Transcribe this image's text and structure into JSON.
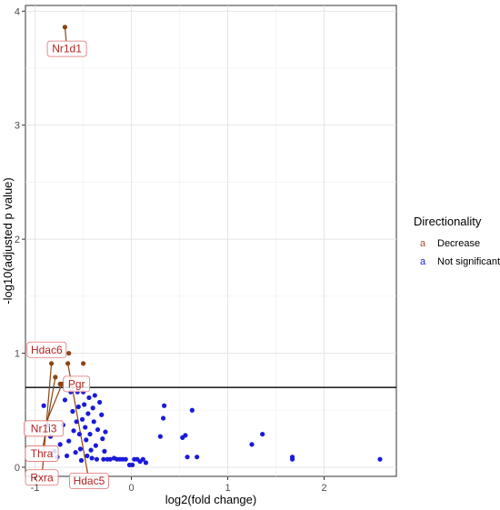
{
  "chart_data": {
    "type": "scatter",
    "xlabel": "log2(fold change)",
    "ylabel": "-log10(adjusted p value)",
    "xlim": [
      -1.1,
      2.75
    ],
    "ylim": [
      -0.08,
      4.05
    ],
    "x_ticks": [
      -1,
      0,
      1,
      2
    ],
    "y_ticks": [
      0,
      1,
      2,
      3,
      4
    ],
    "x_tick_labels": [
      "-1",
      "0",
      "1",
      "2"
    ],
    "y_tick_labels": [
      "0",
      "1",
      "2",
      "3",
      "4"
    ],
    "grid": true,
    "threshold_y": 0.7,
    "legend": {
      "title": "Directionality",
      "position": "right",
      "key_glyph": "a",
      "entries": [
        {
          "label": "Decrease",
          "color": "#a0522d"
        },
        {
          "label": "Not significant",
          "color": "#1a1adb"
        }
      ]
    },
    "series": [
      {
        "name": "Decrease",
        "color": "#8b4513",
        "points": [
          {
            "x": -0.69,
            "y": 3.86,
            "label": "Nr1d1",
            "label_x": -0.67,
            "label_y": 3.67
          },
          {
            "x": -0.65,
            "y": 1.0,
            "label": "Hdac6",
            "label_x": -0.88,
            "label_y": 1.03
          },
          {
            "x": -0.5,
            "y": 0.91,
            "label": "",
            "label_x": null,
            "label_y": null
          },
          {
            "x": -0.66,
            "y": 0.91,
            "label": "Hdac5",
            "label_x": -0.44,
            "label_y": -0.12
          },
          {
            "x": -0.83,
            "y": 0.91,
            "label": "Rxra",
            "label_x": -0.93,
            "label_y": -0.09
          },
          {
            "x": -0.74,
            "y": 0.73,
            "label": "Pgr",
            "label_x": -0.57,
            "label_y": 0.73
          },
          {
            "x": -0.72,
            "y": 0.73,
            "label": "Nr1i3",
            "label_x": -0.91,
            "label_y": 0.34
          },
          {
            "x": -0.79,
            "y": 0.79,
            "label": "Thra",
            "label_x": -0.93,
            "label_y": 0.12
          }
        ]
      },
      {
        "name": "Not significant",
        "color": "#1a1adb",
        "points": [
          {
            "x": -0.91,
            "y": 0.54
          },
          {
            "x": -0.87,
            "y": 0.37
          },
          {
            "x": -0.84,
            "y": 0.27
          },
          {
            "x": -0.8,
            "y": 0.14
          },
          {
            "x": -0.77,
            "y": 0.09
          },
          {
            "x": -0.74,
            "y": 0.2
          },
          {
            "x": -0.71,
            "y": 0.37
          },
          {
            "x": -0.69,
            "y": 0.59
          },
          {
            "x": -0.67,
            "y": 0.1
          },
          {
            "x": -0.65,
            "y": 0.23
          },
          {
            "x": -0.63,
            "y": 0.66
          },
          {
            "x": -0.61,
            "y": 0.49
          },
          {
            "x": -0.6,
            "y": 0.32
          },
          {
            "x": -0.58,
            "y": 0.13
          },
          {
            "x": -0.57,
            "y": 0.4
          },
          {
            "x": -0.56,
            "y": 0.66
          },
          {
            "x": -0.55,
            "y": 0.53
          },
          {
            "x": -0.54,
            "y": 0.29
          },
          {
            "x": -0.53,
            "y": 0.16
          },
          {
            "x": -0.52,
            "y": 0.06
          },
          {
            "x": -0.51,
            "y": 0.42
          },
          {
            "x": -0.5,
            "y": 0.66
          },
          {
            "x": -0.49,
            "y": 0.55
          },
          {
            "x": -0.48,
            "y": 0.35
          },
          {
            "x": -0.47,
            "y": 0.24
          },
          {
            "x": -0.46,
            "y": 0.1
          },
          {
            "x": -0.45,
            "y": 0.47
          },
          {
            "x": -0.44,
            "y": 0.61
          },
          {
            "x": -0.43,
            "y": 0.29
          },
          {
            "x": -0.42,
            "y": 0.15
          },
          {
            "x": -0.41,
            "y": 0.08
          },
          {
            "x": -0.4,
            "y": 0.52
          },
          {
            "x": -0.39,
            "y": 0.4
          },
          {
            "x": -0.38,
            "y": 0.63
          },
          {
            "x": -0.37,
            "y": 0.19
          },
          {
            "x": -0.36,
            "y": 0.07
          },
          {
            "x": -0.35,
            "y": 0.33
          },
          {
            "x": -0.33,
            "y": 0.57
          },
          {
            "x": -0.31,
            "y": 0.46
          },
          {
            "x": -0.3,
            "y": 0.25
          },
          {
            "x": -0.29,
            "y": 0.07
          },
          {
            "x": -0.28,
            "y": 0.14
          },
          {
            "x": -0.27,
            "y": 0.31
          },
          {
            "x": -0.25,
            "y": 0.07
          },
          {
            "x": -0.22,
            "y": 0.07
          },
          {
            "x": -0.18,
            "y": 0.08
          },
          {
            "x": -0.15,
            "y": 0.07
          },
          {
            "x": -0.12,
            "y": 0.07
          },
          {
            "x": -0.09,
            "y": 0.07
          },
          {
            "x": -0.06,
            "y": 0.07
          },
          {
            "x": -0.02,
            "y": 0.02
          },
          {
            "x": 0.01,
            "y": 0.02
          },
          {
            "x": 0.03,
            "y": 0.07
          },
          {
            "x": 0.06,
            "y": 0.07
          },
          {
            "x": 0.09,
            "y": 0.05
          },
          {
            "x": 0.12,
            "y": 0.07
          },
          {
            "x": 0.15,
            "y": 0.04
          },
          {
            "x": 0.3,
            "y": 0.27
          },
          {
            "x": 0.33,
            "y": 0.43
          },
          {
            "x": 0.34,
            "y": 0.54
          },
          {
            "x": 0.53,
            "y": 0.26
          },
          {
            "x": 0.56,
            "y": 0.28
          },
          {
            "x": 0.58,
            "y": 0.09
          },
          {
            "x": 0.63,
            "y": 0.5
          },
          {
            "x": 0.68,
            "y": 0.09
          },
          {
            "x": 1.25,
            "y": 0.2
          },
          {
            "x": 1.36,
            "y": 0.29
          },
          {
            "x": 1.67,
            "y": 0.07
          },
          {
            "x": 1.67,
            "y": 0.09
          },
          {
            "x": 2.58,
            "y": 0.07
          }
        ]
      }
    ]
  }
}
